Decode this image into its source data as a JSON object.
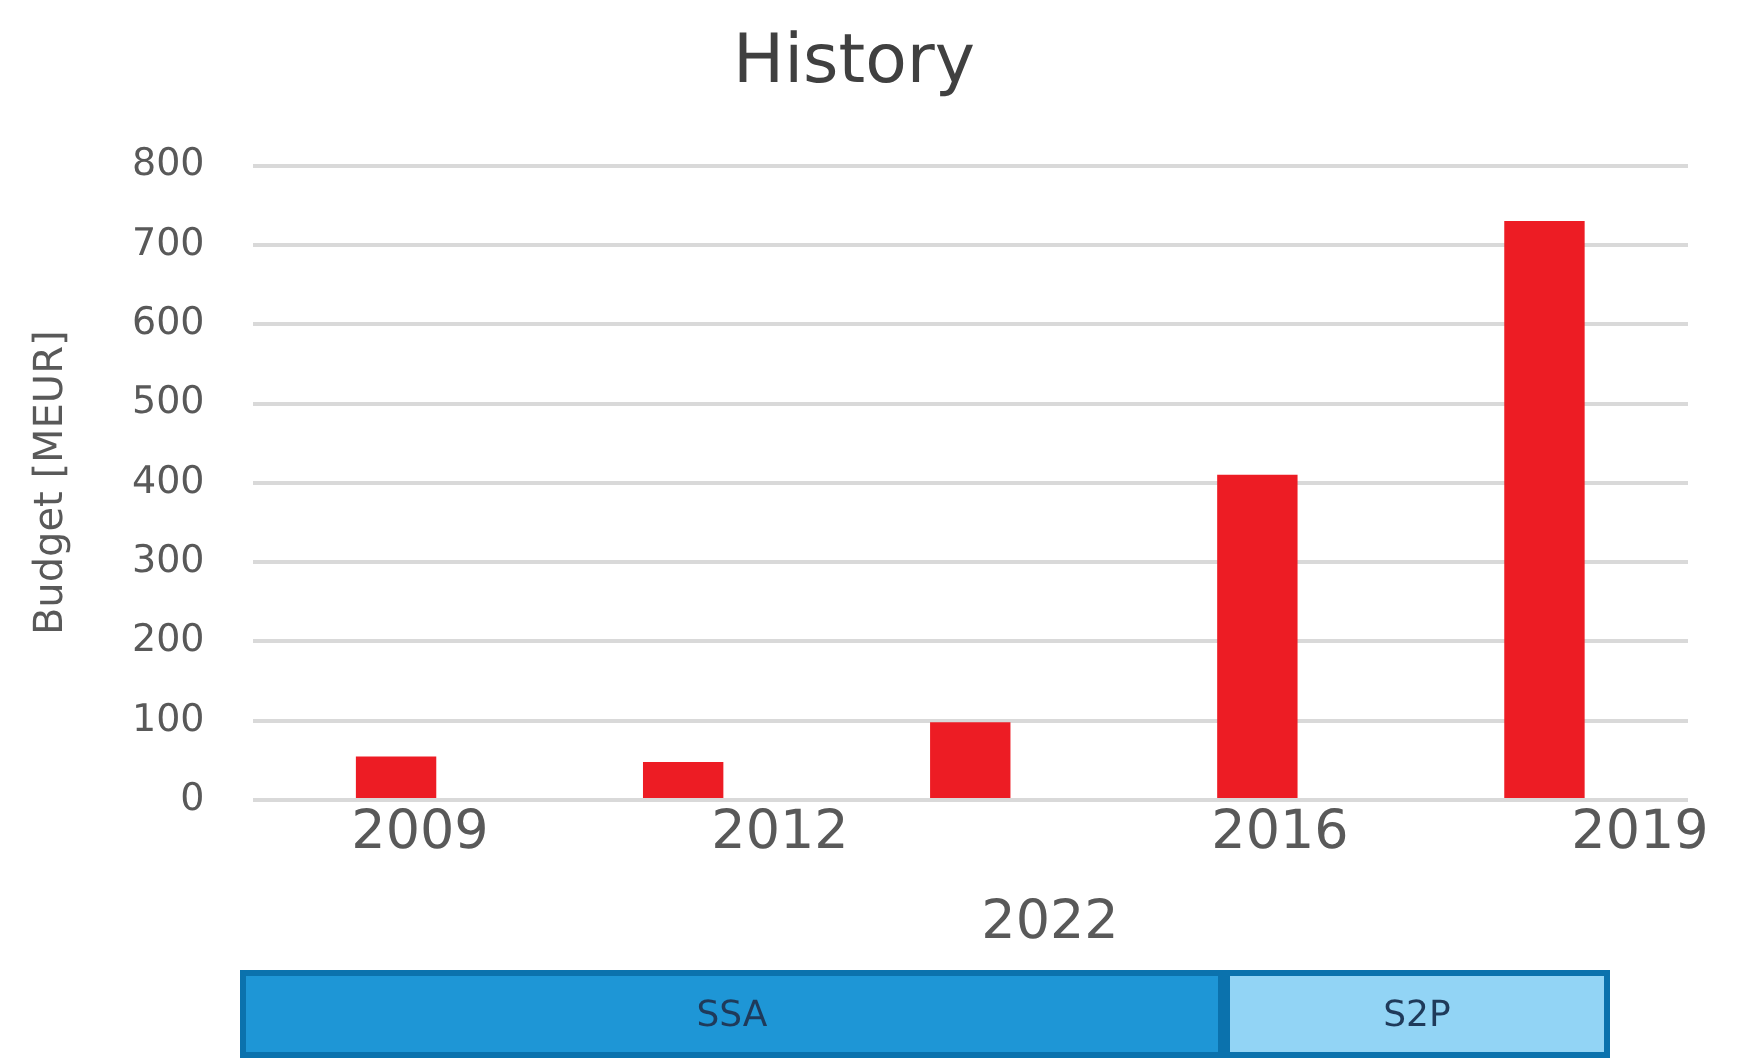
{
  "chart_data": {
    "type": "bar",
    "title": "History",
    "ylabel": "Budget [MEUR]",
    "categories": [
      null,
      null,
      null,
      null,
      null
    ],
    "values": [
      55,
      48,
      98,
      410,
      730
    ],
    "color": "#ed1c24",
    "ylim": [
      0,
      800
    ],
    "yticks": [
      0,
      100,
      200,
      300,
      400,
      500,
      600,
      700,
      800
    ],
    "grid": "y",
    "annotations": [
      "2009",
      "2012",
      "2016",
      "2019",
      "2022",
      "SSA",
      "S2P"
    ]
  }
}
